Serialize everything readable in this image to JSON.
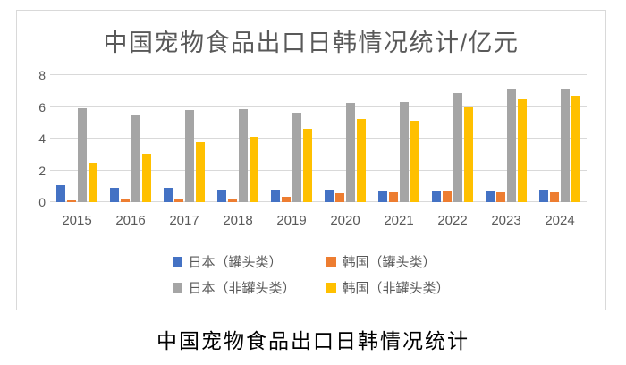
{
  "page": {
    "caption": "中国宠物食品出口日韩情况统计"
  },
  "chart_data": {
    "type": "bar",
    "title": "中国宠物食品出口日韩情况统计/亿元",
    "unit": "亿元",
    "categories": [
      "2015",
      "2016",
      "2017",
      "2018",
      "2019",
      "2020",
      "2021",
      "2022",
      "2023",
      "2024"
    ],
    "series": [
      {
        "name": "日本（罐头类）",
        "color": "#4472C4",
        "values": [
          1.05,
          0.9,
          0.9,
          0.8,
          0.8,
          0.8,
          0.75,
          0.7,
          0.75,
          0.78
        ]
      },
      {
        "name": "韩国（罐头类）",
        "color": "#ED7D31",
        "values": [
          0.1,
          0.15,
          0.2,
          0.25,
          0.35,
          0.55,
          0.6,
          0.7,
          0.62,
          0.62
        ]
      },
      {
        "name": "日本（非罐头类）",
        "color": "#A5A5A5",
        "values": [
          5.9,
          5.5,
          5.8,
          5.85,
          5.65,
          6.25,
          6.3,
          6.85,
          7.15,
          7.15
        ]
      },
      {
        "name": "韩国（非罐头类）",
        "color": "#FFC000",
        "values": [
          2.5,
          3.05,
          3.75,
          4.1,
          4.6,
          5.25,
          5.1,
          6.0,
          6.5,
          6.7
        ]
      }
    ],
    "ylim": [
      0,
      8
    ],
    "yticks": [
      0,
      2,
      4,
      6,
      8
    ],
    "grid": true,
    "legend_position": "bottom",
    "colors": {
      "text": "#595959",
      "gridline": "#D9D9D9",
      "frame_border": "#D9D9D9",
      "caption_text": "#000000"
    }
  }
}
